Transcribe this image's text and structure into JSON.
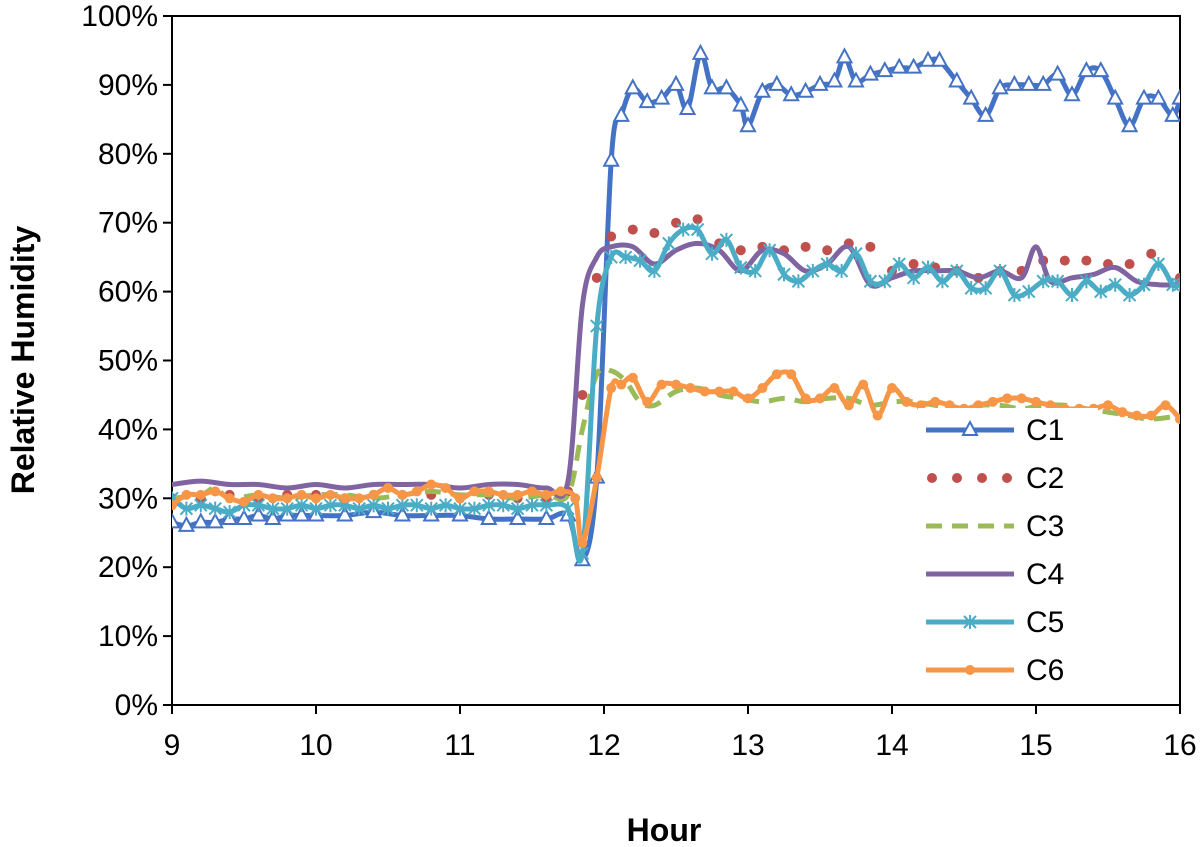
{
  "chart_data": {
    "type": "line",
    "title": "",
    "xlabel": "Hour",
    "ylabel": "Relative Humidity",
    "xlim": [
      9,
      16
    ],
    "ylim": [
      0,
      100
    ],
    "x_ticks": [
      "9",
      "10",
      "11",
      "12",
      "13",
      "14",
      "15",
      "16"
    ],
    "y_ticks": [
      "0%",
      "10%",
      "20%",
      "30%",
      "40%",
      "50%",
      "60%",
      "70%",
      "80%",
      "90%",
      "100%"
    ],
    "grid": false,
    "legend_position": "bottom-right",
    "series": [
      {
        "name": "C1",
        "color": "#4472C4",
        "marker": "triangle",
        "dash": "solid",
        "x": [
          9.0,
          9.1,
          9.2,
          9.3,
          9.4,
          9.5,
          9.6,
          9.7,
          9.8,
          9.9,
          10.0,
          10.2,
          10.4,
          10.6,
          10.8,
          11.0,
          11.2,
          11.4,
          11.6,
          11.75,
          11.85,
          11.95,
          12.05,
          12.12,
          12.2,
          12.3,
          12.4,
          12.5,
          12.58,
          12.67,
          12.75,
          12.85,
          12.95,
          13.0,
          13.1,
          13.2,
          13.3,
          13.4,
          13.5,
          13.6,
          13.67,
          13.75,
          13.85,
          13.95,
          14.05,
          14.15,
          14.25,
          14.33,
          14.45,
          14.55,
          14.65,
          14.75,
          14.85,
          14.95,
          15.05,
          15.15,
          15.25,
          15.35,
          15.45,
          15.55,
          15.65,
          15.75,
          15.85,
          15.95,
          16.0
        ],
        "y": [
          26.5,
          26.0,
          26.5,
          26.5,
          27.0,
          27.0,
          27.5,
          27.0,
          27.5,
          27.5,
          27.5,
          27.5,
          28.0,
          27.5,
          27.5,
          27.5,
          27.0,
          27.0,
          27.0,
          27.5,
          21.0,
          33.0,
          79.0,
          85.5,
          89.5,
          87.5,
          88.0,
          90.0,
          86.5,
          94.5,
          89.5,
          89.5,
          87.0,
          84.0,
          89.0,
          90.0,
          88.5,
          89.0,
          90.0,
          90.5,
          94.0,
          90.5,
          91.5,
          92.0,
          92.5,
          92.5,
          93.5,
          93.5,
          90.5,
          88.0,
          85.5,
          89.5,
          90.0,
          90.0,
          90.0,
          91.5,
          88.5,
          92.0,
          92.0,
          88.0,
          84.0,
          88.0,
          88.0,
          85.5,
          88.0
        ]
      },
      {
        "name": "C2",
        "color": "#C0504D",
        "marker": "dot",
        "dash": "dotted",
        "x": [
          9.0,
          9.2,
          9.4,
          9.6,
          9.8,
          10.0,
          10.2,
          10.4,
          10.6,
          10.8,
          11.0,
          11.2,
          11.4,
          11.6,
          11.75,
          11.85,
          11.95,
          12.05,
          12.2,
          12.35,
          12.5,
          12.65,
          12.8,
          12.95,
          13.1,
          13.25,
          13.4,
          13.55,
          13.7,
          13.85,
          14.0,
          14.15,
          14.3,
          14.45,
          14.6,
          14.75,
          14.9,
          15.05,
          15.2,
          15.35,
          15.5,
          15.65,
          15.8,
          16.0
        ],
        "y": [
          30.0,
          30.0,
          30.5,
          30.0,
          30.5,
          30.5,
          30.0,
          30.5,
          30.5,
          30.5,
          30.0,
          30.5,
          30.0,
          30.0,
          31.0,
          45.0,
          62.0,
          68.0,
          69.0,
          68.5,
          70.0,
          70.5,
          67.0,
          66.0,
          66.5,
          66.0,
          66.5,
          66.0,
          67.0,
          66.5,
          63.0,
          64.0,
          63.5,
          63.0,
          62.0,
          63.0,
          63.0,
          64.5,
          64.5,
          64.5,
          64.0,
          64.0,
          65.5,
          62.0
        ]
      },
      {
        "name": "C3",
        "color": "#9BBB59",
        "marker": "none",
        "dash": "dashed",
        "x": [
          9.0,
          9.2,
          9.3,
          9.4,
          9.6,
          9.8,
          10.0,
          10.2,
          10.4,
          10.6,
          10.8,
          11.0,
          11.2,
          11.4,
          11.6,
          11.75,
          11.85,
          11.95,
          12.05,
          12.15,
          12.25,
          12.35,
          12.5,
          12.65,
          12.8,
          12.95,
          13.1,
          13.25,
          13.4,
          13.55,
          13.7,
          13.85,
          14.0,
          14.15,
          14.3,
          14.45,
          14.6,
          14.75,
          14.9,
          15.05,
          15.2,
          15.35,
          15.5,
          15.65,
          15.8,
          16.0
        ],
        "y": [
          30.0,
          30.5,
          31.5,
          30.0,
          30.5,
          30.0,
          30.5,
          30.5,
          30.0,
          30.5,
          31.0,
          30.5,
          30.5,
          30.0,
          30.5,
          30.5,
          40.0,
          48.0,
          48.5,
          47.0,
          44.0,
          43.5,
          45.5,
          46.0,
          45.0,
          44.5,
          44.0,
          44.5,
          44.0,
          44.5,
          44.5,
          43.5,
          44.0,
          44.0,
          43.5,
          43.0,
          43.5,
          43.5,
          43.0,
          43.5,
          43.5,
          43.0,
          42.5,
          42.0,
          41.5,
          42.0
        ]
      },
      {
        "name": "C4",
        "color": "#8064A2",
        "marker": "none",
        "dash": "solid",
        "x": [
          9.0,
          9.2,
          9.4,
          9.6,
          9.8,
          10.0,
          10.2,
          10.4,
          10.6,
          10.8,
          11.0,
          11.2,
          11.4,
          11.6,
          11.75,
          11.85,
          11.95,
          12.05,
          12.2,
          12.35,
          12.5,
          12.65,
          12.8,
          12.95,
          13.1,
          13.25,
          13.4,
          13.55,
          13.7,
          13.85,
          14.0,
          14.15,
          14.3,
          14.45,
          14.6,
          14.75,
          14.9,
          15.0,
          15.1,
          15.25,
          15.4,
          15.55,
          15.7,
          15.85,
          16.0
        ],
        "y": [
          32.0,
          32.5,
          32.0,
          32.0,
          31.5,
          32.0,
          31.5,
          32.0,
          32.0,
          32.0,
          31.5,
          32.0,
          32.0,
          31.5,
          32.5,
          58.0,
          65.0,
          66.5,
          66.5,
          64.0,
          66.0,
          67.0,
          66.0,
          63.0,
          66.0,
          65.5,
          63.0,
          64.0,
          66.5,
          61.0,
          62.0,
          63.0,
          63.0,
          63.0,
          62.0,
          63.0,
          62.0,
          66.5,
          61.5,
          62.0,
          62.5,
          63.5,
          61.5,
          61.0,
          61.0
        ]
      },
      {
        "name": "C5",
        "color": "#4BACC6",
        "marker": "star",
        "dash": "solid",
        "x": [
          9.0,
          9.1,
          9.2,
          9.3,
          9.4,
          9.5,
          9.6,
          9.7,
          9.8,
          9.9,
          10.0,
          10.1,
          10.2,
          10.3,
          10.4,
          10.5,
          10.6,
          10.7,
          10.8,
          10.9,
          11.0,
          11.1,
          11.2,
          11.3,
          11.4,
          11.5,
          11.6,
          11.75,
          11.85,
          11.95,
          12.05,
          12.15,
          12.25,
          12.35,
          12.45,
          12.55,
          12.65,
          12.75,
          12.85,
          12.95,
          13.05,
          13.15,
          13.25,
          13.35,
          13.45,
          13.55,
          13.65,
          13.75,
          13.85,
          13.95,
          14.05,
          14.15,
          14.25,
          14.35,
          14.45,
          14.55,
          14.65,
          14.75,
          14.85,
          14.95,
          15.05,
          15.15,
          15.25,
          15.35,
          15.45,
          15.55,
          15.65,
          15.75,
          15.85,
          15.95,
          16.0
        ],
        "y": [
          30.0,
          28.5,
          29.0,
          28.5,
          28.0,
          29.0,
          29.0,
          28.5,
          28.5,
          29.0,
          28.5,
          29.0,
          29.0,
          28.5,
          29.0,
          28.5,
          29.0,
          29.0,
          28.5,
          29.0,
          28.5,
          28.5,
          29.0,
          29.0,
          28.5,
          29.0,
          29.0,
          28.5,
          22.0,
          55.0,
          65.0,
          65.0,
          64.5,
          63.0,
          67.0,
          69.0,
          69.0,
          65.5,
          67.5,
          63.5,
          63.0,
          66.0,
          62.5,
          61.5,
          63.0,
          64.0,
          63.0,
          65.5,
          61.5,
          61.5,
          64.0,
          62.0,
          63.5,
          61.5,
          63.0,
          60.5,
          60.5,
          63.0,
          59.5,
          60.0,
          61.5,
          61.5,
          59.5,
          61.5,
          60.0,
          61.0,
          59.5,
          61.0,
          64.0,
          61.0,
          61.0
        ]
      },
      {
        "name": "C6",
        "color": "#F79646",
        "marker": "dot",
        "dash": "solid",
        "x": [
          9.0,
          9.1,
          9.2,
          9.3,
          9.4,
          9.5,
          9.6,
          9.7,
          9.8,
          9.9,
          10.0,
          10.1,
          10.2,
          10.3,
          10.4,
          10.5,
          10.6,
          10.7,
          10.8,
          10.9,
          11.0,
          11.1,
          11.2,
          11.3,
          11.4,
          11.5,
          11.6,
          11.7,
          11.8,
          11.85,
          11.95,
          12.05,
          12.12,
          12.2,
          12.3,
          12.4,
          12.5,
          12.6,
          12.7,
          12.8,
          12.9,
          13.0,
          13.1,
          13.2,
          13.3,
          13.4,
          13.5,
          13.6,
          13.7,
          13.8,
          13.9,
          14.0,
          14.1,
          14.2,
          14.3,
          14.4,
          14.5,
          14.6,
          14.7,
          14.8,
          14.9,
          15.0,
          15.1,
          15.2,
          15.3,
          15.4,
          15.5,
          15.6,
          15.7,
          15.8,
          15.9,
          16.0
        ],
        "y": [
          29.0,
          30.5,
          30.5,
          31.0,
          30.0,
          29.5,
          30.5,
          30.0,
          30.0,
          30.5,
          30.0,
          30.5,
          30.0,
          30.0,
          30.5,
          31.5,
          30.5,
          31.0,
          32.0,
          31.5,
          30.0,
          31.0,
          31.0,
          30.5,
          30.5,
          31.0,
          30.5,
          31.0,
          30.0,
          23.5,
          33.0,
          46.0,
          46.5,
          47.5,
          44.0,
          46.5,
          46.5,
          46.0,
          45.5,
          45.5,
          45.5,
          44.5,
          46.0,
          48.0,
          48.0,
          44.5,
          44.5,
          46.0,
          43.5,
          46.5,
          42.0,
          46.0,
          44.0,
          43.5,
          44.0,
          43.5,
          43.0,
          43.5,
          44.0,
          44.5,
          44.5,
          44.0,
          43.5,
          43.0,
          43.0,
          43.0,
          43.5,
          42.5,
          42.0,
          42.0,
          43.5,
          41.5
        ]
      }
    ]
  }
}
